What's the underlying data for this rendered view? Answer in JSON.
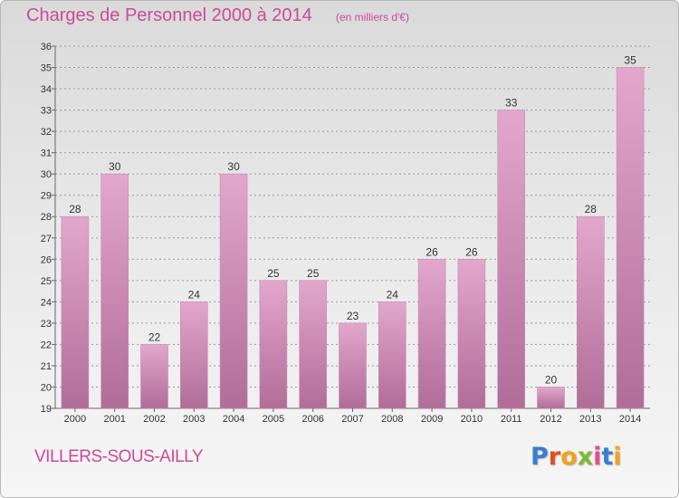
{
  "title": "Charges de Personnel 2000 à 2014",
  "subtitle": "(en milliers d'€)",
  "commune": "VILLERS-SOUS-AILLY",
  "logo": {
    "text": "Proxiti",
    "letter_colors": [
      "#3a7fd0",
      "#e04e1e",
      "#f2a21c",
      "#7fb83a",
      "#e84d8a",
      "#3a7fd0",
      "#f2a21c"
    ]
  },
  "colors": {
    "accent": "#cc4a9a",
    "bar_top": "#e3a7cc",
    "bar_bottom": "#b06d98",
    "grid": "#9a9a9a"
  },
  "chart_data": {
    "type": "bar",
    "title": "Charges de Personnel 2000 à 2014",
    "subtitle": "(en milliers d'€)",
    "xlabel": "",
    "ylabel": "",
    "categories": [
      "2000",
      "2001",
      "2002",
      "2003",
      "2004",
      "2005",
      "2006",
      "2007",
      "2008",
      "2009",
      "2010",
      "2011",
      "2012",
      "2013",
      "2014"
    ],
    "values": [
      28,
      30,
      22,
      24,
      30,
      25,
      25,
      23,
      24,
      26,
      26,
      33,
      20,
      28,
      35
    ],
    "ylim": [
      19,
      36
    ],
    "yticks": [
      19,
      20,
      21,
      22,
      23,
      24,
      25,
      26,
      27,
      28,
      29,
      30,
      31,
      32,
      33,
      34,
      35,
      36
    ],
    "grid": true,
    "legend": "none"
  }
}
